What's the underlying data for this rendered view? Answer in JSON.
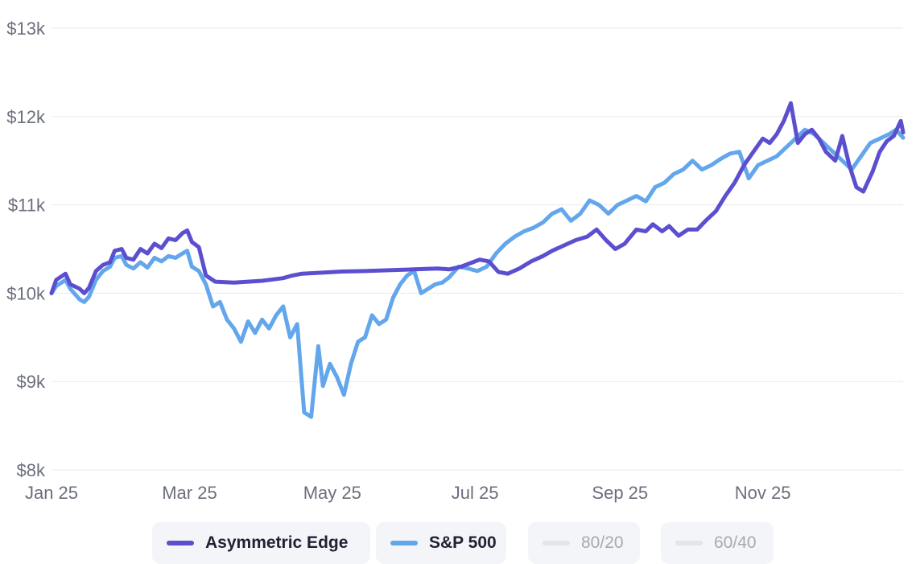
{
  "chart_data": {
    "type": "line",
    "title": "",
    "xlabel": "",
    "ylabel": "",
    "ylim": [
      8000,
      13000
    ],
    "xlim": [
      "2025-01-01",
      "2025-12-31"
    ],
    "grid": true,
    "legend_position": "bottom",
    "y_ticks": [
      {
        "value": 8000,
        "label": "$8k"
      },
      {
        "value": 9000,
        "label": "$9k"
      },
      {
        "value": 10000,
        "label": "$10k"
      },
      {
        "value": 11000,
        "label": "$11k"
      },
      {
        "value": 12000,
        "label": "$12k"
      },
      {
        "value": 13000,
        "label": "$13k"
      }
    ],
    "x_ticks": [
      {
        "value": "2025-01-01",
        "label": "Jan 25"
      },
      {
        "value": "2025-03-01",
        "label": "Mar 25"
      },
      {
        "value": "2025-05-01",
        "label": "May 25"
      },
      {
        "value": "2025-07-01",
        "label": "Jul 25"
      },
      {
        "value": "2025-09-01",
        "label": "Sep 25"
      },
      {
        "value": "2025-11-01",
        "label": "Nov 25"
      }
    ],
    "series": [
      {
        "name": "Asymmetric Edge",
        "color": "#5b4fd0",
        "visible": true,
        "points": [
          [
            "2025-01-01",
            10000
          ],
          [
            "2025-01-03",
            10150
          ],
          [
            "2025-01-07",
            10220
          ],
          [
            "2025-01-09",
            10100
          ],
          [
            "2025-01-13",
            10050
          ],
          [
            "2025-01-15",
            10000
          ],
          [
            "2025-01-17",
            10060
          ],
          [
            "2025-01-20",
            10250
          ],
          [
            "2025-01-23",
            10320
          ],
          [
            "2025-01-26",
            10350
          ],
          [
            "2025-01-28",
            10480
          ],
          [
            "2025-01-31",
            10500
          ],
          [
            "2025-02-02",
            10400
          ],
          [
            "2025-02-05",
            10380
          ],
          [
            "2025-02-08",
            10500
          ],
          [
            "2025-02-11",
            10450
          ],
          [
            "2025-02-14",
            10560
          ],
          [
            "2025-02-17",
            10510
          ],
          [
            "2025-02-20",
            10620
          ],
          [
            "2025-02-23",
            10600
          ],
          [
            "2025-02-26",
            10680
          ],
          [
            "2025-02-28",
            10710
          ],
          [
            "2025-03-02",
            10580
          ],
          [
            "2025-03-05",
            10520
          ],
          [
            "2025-03-08",
            10200
          ],
          [
            "2025-03-12",
            10130
          ],
          [
            "2025-03-20",
            10120
          ],
          [
            "2025-04-01",
            10140
          ],
          [
            "2025-04-10",
            10170
          ],
          [
            "2025-04-14",
            10200
          ],
          [
            "2025-04-18",
            10220
          ],
          [
            "2025-04-25",
            10230
          ],
          [
            "2025-05-05",
            10245
          ],
          [
            "2025-05-15",
            10250
          ],
          [
            "2025-05-25",
            10260
          ],
          [
            "2025-06-05",
            10270
          ],
          [
            "2025-06-15",
            10280
          ],
          [
            "2025-06-20",
            10270
          ],
          [
            "2025-06-25",
            10300
          ],
          [
            "2025-06-29",
            10340
          ],
          [
            "2025-07-03",
            10380
          ],
          [
            "2025-07-07",
            10360
          ],
          [
            "2025-07-11",
            10240
          ],
          [
            "2025-07-15",
            10220
          ],
          [
            "2025-07-20",
            10280
          ],
          [
            "2025-07-25",
            10360
          ],
          [
            "2025-07-30",
            10420
          ],
          [
            "2025-08-03",
            10480
          ],
          [
            "2025-08-08",
            10540
          ],
          [
            "2025-08-13",
            10600
          ],
          [
            "2025-08-18",
            10640
          ],
          [
            "2025-08-22",
            10720
          ],
          [
            "2025-08-26",
            10600
          ],
          [
            "2025-08-30",
            10500
          ],
          [
            "2025-09-03",
            10560
          ],
          [
            "2025-09-08",
            10720
          ],
          [
            "2025-09-12",
            10700
          ],
          [
            "2025-09-15",
            10780
          ],
          [
            "2025-09-19",
            10700
          ],
          [
            "2025-09-22",
            10760
          ],
          [
            "2025-09-26",
            10650
          ],
          [
            "2025-09-30",
            10720
          ],
          [
            "2025-10-04",
            10720
          ],
          [
            "2025-10-08",
            10830
          ],
          [
            "2025-10-12",
            10930
          ],
          [
            "2025-10-16",
            11100
          ],
          [
            "2025-10-20",
            11250
          ],
          [
            "2025-10-24",
            11450
          ],
          [
            "2025-10-28",
            11600
          ],
          [
            "2025-11-01",
            11750
          ],
          [
            "2025-11-04",
            11700
          ],
          [
            "2025-11-07",
            11800
          ],
          [
            "2025-11-10",
            11950
          ],
          [
            "2025-11-13",
            12150
          ],
          [
            "2025-11-16",
            11700
          ],
          [
            "2025-11-19",
            11800
          ],
          [
            "2025-11-22",
            11850
          ],
          [
            "2025-11-25",
            11750
          ],
          [
            "2025-11-28",
            11600
          ],
          [
            "2025-12-02",
            11500
          ],
          [
            "2025-12-05",
            11780
          ],
          [
            "2025-12-08",
            11450
          ],
          [
            "2025-12-11",
            11200
          ],
          [
            "2025-12-14",
            11150
          ],
          [
            "2025-12-18",
            11380
          ],
          [
            "2025-12-21",
            11600
          ],
          [
            "2025-12-24",
            11720
          ],
          [
            "2025-12-27",
            11780
          ],
          [
            "2025-12-30",
            11950
          ],
          [
            "2025-12-31",
            11820
          ]
        ]
      },
      {
        "name": "S&P 500",
        "color": "#63a6ec",
        "visible": true,
        "points": [
          [
            "2025-01-01",
            10000
          ],
          [
            "2025-01-03",
            10080
          ],
          [
            "2025-01-07",
            10150
          ],
          [
            "2025-01-09",
            10050
          ],
          [
            "2025-01-13",
            9930
          ],
          [
            "2025-01-15",
            9900
          ],
          [
            "2025-01-17",
            9960
          ],
          [
            "2025-01-20",
            10150
          ],
          [
            "2025-01-23",
            10250
          ],
          [
            "2025-01-26",
            10300
          ],
          [
            "2025-01-28",
            10400
          ],
          [
            "2025-01-31",
            10420
          ],
          [
            "2025-02-02",
            10320
          ],
          [
            "2025-02-05",
            10280
          ],
          [
            "2025-02-08",
            10350
          ],
          [
            "2025-02-11",
            10290
          ],
          [
            "2025-02-14",
            10400
          ],
          [
            "2025-02-17",
            10360
          ],
          [
            "2025-02-20",
            10420
          ],
          [
            "2025-02-23",
            10400
          ],
          [
            "2025-02-26",
            10450
          ],
          [
            "2025-02-28",
            10480
          ],
          [
            "2025-03-02",
            10300
          ],
          [
            "2025-03-05",
            10250
          ],
          [
            "2025-03-08",
            10100
          ],
          [
            "2025-03-11",
            9850
          ],
          [
            "2025-03-14",
            9900
          ],
          [
            "2025-03-17",
            9700
          ],
          [
            "2025-03-20",
            9600
          ],
          [
            "2025-03-23",
            9450
          ],
          [
            "2025-03-26",
            9680
          ],
          [
            "2025-03-29",
            9550
          ],
          [
            "2025-04-01",
            9700
          ],
          [
            "2025-04-04",
            9600
          ],
          [
            "2025-04-07",
            9750
          ],
          [
            "2025-04-10",
            9850
          ],
          [
            "2025-04-13",
            9500
          ],
          [
            "2025-04-16",
            9650
          ],
          [
            "2025-04-19",
            8650
          ],
          [
            "2025-04-22",
            8600
          ],
          [
            "2025-04-25",
            9400
          ],
          [
            "2025-04-27",
            8950
          ],
          [
            "2025-04-30",
            9200
          ],
          [
            "2025-05-03",
            9050
          ],
          [
            "2025-05-06",
            8850
          ],
          [
            "2025-05-09",
            9200
          ],
          [
            "2025-05-12",
            9450
          ],
          [
            "2025-05-15",
            9500
          ],
          [
            "2025-05-18",
            9750
          ],
          [
            "2025-05-21",
            9650
          ],
          [
            "2025-05-24",
            9700
          ],
          [
            "2025-05-27",
            9950
          ],
          [
            "2025-05-30",
            10100
          ],
          [
            "2025-06-02",
            10200
          ],
          [
            "2025-06-05",
            10250
          ],
          [
            "2025-06-08",
            10000
          ],
          [
            "2025-06-11",
            10050
          ],
          [
            "2025-06-14",
            10100
          ],
          [
            "2025-06-17",
            10120
          ],
          [
            "2025-06-20",
            10180
          ],
          [
            "2025-06-24",
            10300
          ],
          [
            "2025-06-28",
            10280
          ],
          [
            "2025-07-02",
            10250
          ],
          [
            "2025-07-06",
            10300
          ],
          [
            "2025-07-10",
            10450
          ],
          [
            "2025-07-14",
            10560
          ],
          [
            "2025-07-18",
            10640
          ],
          [
            "2025-07-22",
            10700
          ],
          [
            "2025-07-26",
            10740
          ],
          [
            "2025-07-30",
            10800
          ],
          [
            "2025-08-03",
            10900
          ],
          [
            "2025-08-07",
            10950
          ],
          [
            "2025-08-11",
            10820
          ],
          [
            "2025-08-15",
            10900
          ],
          [
            "2025-08-19",
            11050
          ],
          [
            "2025-08-23",
            11000
          ],
          [
            "2025-08-27",
            10900
          ],
          [
            "2025-08-31",
            11000
          ],
          [
            "2025-09-04",
            11050
          ],
          [
            "2025-09-08",
            11100
          ],
          [
            "2025-09-12",
            11040
          ],
          [
            "2025-09-16",
            11200
          ],
          [
            "2025-09-20",
            11250
          ],
          [
            "2025-09-24",
            11350
          ],
          [
            "2025-09-28",
            11400
          ],
          [
            "2025-10-02",
            11500
          ],
          [
            "2025-10-06",
            11400
          ],
          [
            "2025-10-10",
            11450
          ],
          [
            "2025-10-14",
            11520
          ],
          [
            "2025-10-18",
            11580
          ],
          [
            "2025-10-22",
            11600
          ],
          [
            "2025-10-26",
            11300
          ],
          [
            "2025-10-30",
            11450
          ],
          [
            "2025-11-03",
            11500
          ],
          [
            "2025-11-07",
            11550
          ],
          [
            "2025-11-11",
            11650
          ],
          [
            "2025-11-15",
            11750
          ],
          [
            "2025-11-19",
            11850
          ],
          [
            "2025-11-23",
            11800
          ],
          [
            "2025-11-27",
            11700
          ],
          [
            "2025-12-01",
            11600
          ],
          [
            "2025-12-05",
            11500
          ],
          [
            "2025-12-09",
            11400
          ],
          [
            "2025-12-13",
            11550
          ],
          [
            "2025-12-17",
            11700
          ],
          [
            "2025-12-21",
            11750
          ],
          [
            "2025-12-25",
            11800
          ],
          [
            "2025-12-28",
            11850
          ],
          [
            "2025-12-31",
            11760
          ]
        ]
      },
      {
        "name": "80/20",
        "color": "#e4e5ea",
        "visible": false,
        "points": []
      },
      {
        "name": "60/40",
        "color": "#e4e5ea",
        "visible": false,
        "points": []
      }
    ]
  }
}
